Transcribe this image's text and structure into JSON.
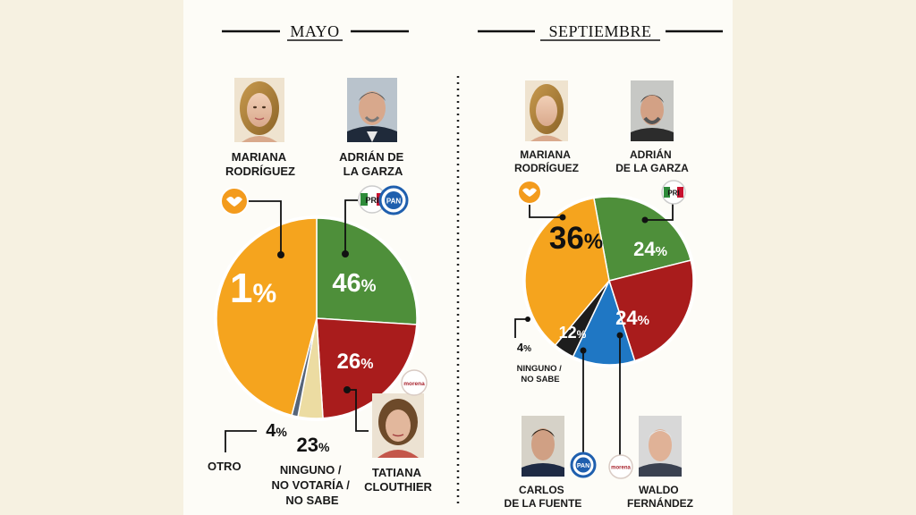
{
  "colors": {
    "orange": "#f5a41e",
    "green": "#4e8f3a",
    "red": "#a91c1c",
    "blue": "#1f77c4",
    "cream": "#ecdca2",
    "slate": "#56657a",
    "black": "#1d1d1d",
    "background": "#fdfcf7"
  },
  "chart_data": [
    {
      "type": "pie",
      "title": "MAYO",
      "slices": [
        {
          "label": "MARIANA RODRÍGUEZ",
          "value": 46,
          "display": "46%",
          "color": "#f5a41e"
        },
        {
          "label": "ADRIÁN DE LA GARZA",
          "value": 26,
          "display": "26%",
          "color": "#4e8f3a"
        },
        {
          "label": "TATIANA CLOUTHIER",
          "value": 23,
          "display": "23%",
          "color": "#a91c1c"
        },
        {
          "label": "NINGUNO / NO VOTARÍA / NO SABE",
          "value": 4,
          "display": "4%",
          "color": "#ecdca2"
        },
        {
          "label": "OTRO",
          "value": 1,
          "display": "1%",
          "color": "#56657a"
        }
      ],
      "candidates": [
        {
          "name": [
            "MARIANA",
            "RODRÍGUEZ"
          ],
          "party_icons": [
            "movimiento-ciudadano-icon"
          ]
        },
        {
          "name": [
            "ADRIÁN DE",
            "LA GARZA"
          ],
          "party_icons": [
            "pri-icon",
            "pan-icon"
          ]
        },
        {
          "name": [
            "TATIANA",
            "CLOUTHIER"
          ],
          "party_icons": [
            "morena-icon"
          ]
        }
      ],
      "other_labels": {
        "otro": "OTRO",
        "ninguno": [
          "NINGUNO /",
          "NO VOTARÍA /",
          "NO SABE"
        ]
      }
    },
    {
      "type": "pie",
      "title": "SEPTIEMBRE",
      "slices": [
        {
          "label": "MARIANA RODRÍGUEZ",
          "value": 36,
          "display": "36%",
          "color": "#f5a41e"
        },
        {
          "label": "ADRIÁN DE LA GARZA",
          "value": 24,
          "display": "24%",
          "color": "#4e8f3a"
        },
        {
          "label": "WALDO FERNÁNDEZ",
          "value": 24,
          "display": "24%",
          "color": "#a91c1c"
        },
        {
          "label": "CARLOS DE LA FUENTE",
          "value": 12,
          "display": "12%",
          "color": "#1f77c4"
        },
        {
          "label": "NINGUNO / NO SABE",
          "value": 4,
          "display": "4%",
          "color": "#1d1d1d"
        }
      ],
      "candidates": [
        {
          "name": [
            "MARIANA",
            "RODRÍGUEZ"
          ],
          "party_icons": [
            "movimiento-ciudadano-icon"
          ]
        },
        {
          "name": [
            "ADRIÁN",
            "DE LA GARZA"
          ],
          "party_icons": [
            "pri-icon"
          ]
        },
        {
          "name": [
            "CARLOS",
            "DE LA FUENTE"
          ],
          "party_icons": [
            "pan-icon"
          ]
        },
        {
          "name": [
            "WALDO",
            "FERNÁNDEZ"
          ],
          "party_icons": [
            "morena-icon"
          ]
        }
      ],
      "other_labels": {
        "ninguno": [
          "NINGUNO /",
          "NO SABE"
        ]
      }
    }
  ],
  "party_badges": {
    "pri": "PRI",
    "pan": "PAN",
    "morena": "morena"
  }
}
